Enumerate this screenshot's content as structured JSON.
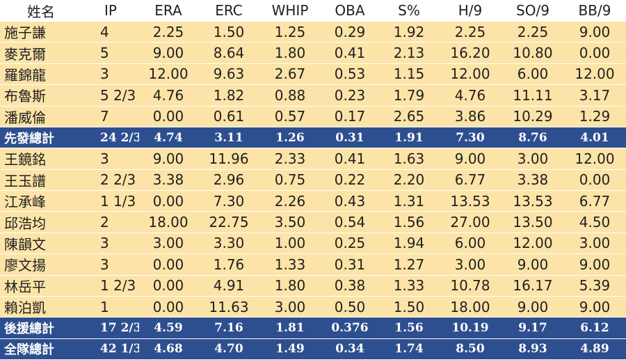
{
  "columns": [
    "姓名",
    "IP",
    "ERA",
    "ERC",
    "WHIP",
    "OBA",
    "S%",
    "H/9",
    "SO/9",
    "BB/9"
  ],
  "rows": [
    {
      "type": "player",
      "cells": [
        "施子謙",
        "4",
        "2.25",
        "1.50",
        "1.25",
        "0.29",
        "1.92",
        "2.25",
        "2.25",
        "9.00"
      ]
    },
    {
      "type": "player",
      "cells": [
        "麥克爾",
        "5",
        "9.00",
        "8.64",
        "1.80",
        "0.41",
        "2.13",
        "16.20",
        "10.80",
        "0.00"
      ]
    },
    {
      "type": "player",
      "cells": [
        "羅錦龍",
        "3",
        "12.00",
        "9.63",
        "2.67",
        "0.53",
        "1.15",
        "12.00",
        "6.00",
        "12.00"
      ]
    },
    {
      "type": "player",
      "cells": [
        "布魯斯",
        "5 2/3",
        "4.76",
        "1.82",
        "0.88",
        "0.23",
        "1.79",
        "4.76",
        "11.11",
        "3.17"
      ]
    },
    {
      "type": "player",
      "cells": [
        "潘威倫",
        "7",
        "0.00",
        "0.61",
        "0.57",
        "0.17",
        "2.65",
        "3.86",
        "10.29",
        "1.29"
      ]
    },
    {
      "type": "total",
      "cells": [
        "先發總計",
        "24 2/3",
        "4.74",
        "3.11",
        "1.26",
        "0.31",
        "1.91",
        "7.30",
        "8.76",
        "4.01"
      ]
    },
    {
      "type": "player",
      "cells": [
        "王鏡銘",
        "3",
        "9.00",
        "11.96",
        "2.33",
        "0.41",
        "1.63",
        "9.00",
        "3.00",
        "12.00"
      ]
    },
    {
      "type": "player",
      "cells": [
        "王玉譜",
        "2 2/3",
        "3.38",
        "2.96",
        "0.75",
        "0.22",
        "2.20",
        "6.77",
        "3.38",
        "0.00"
      ]
    },
    {
      "type": "player",
      "cells": [
        "江承峰",
        "1 1/3",
        "0.00",
        "7.30",
        "2.26",
        "0.43",
        "1.31",
        "13.53",
        "13.53",
        "6.77"
      ]
    },
    {
      "type": "player",
      "cells": [
        "邱浩均",
        "2",
        "18.00",
        "22.75",
        "3.50",
        "0.54",
        "1.56",
        "27.00",
        "13.50",
        "4.50"
      ]
    },
    {
      "type": "player",
      "cells": [
        "陳韻文",
        "3",
        "3.00",
        "3.30",
        "1.00",
        "0.25",
        "1.94",
        "6.00",
        "12.00",
        "3.00"
      ]
    },
    {
      "type": "player",
      "cells": [
        "廖文揚",
        "3",
        "0.00",
        "1.76",
        "1.33",
        "0.31",
        "1.27",
        "3.00",
        "9.00",
        "9.00"
      ]
    },
    {
      "type": "player",
      "cells": [
        "林岳平",
        "1 2/3",
        "0.00",
        "4.91",
        "1.80",
        "0.38",
        "1.33",
        "10.78",
        "16.17",
        "5.39"
      ]
    },
    {
      "type": "player",
      "cells": [
        "賴泊凱",
        "1",
        "0.00",
        "11.63",
        "3.00",
        "0.50",
        "1.50",
        "18.00",
        "9.00",
        "9.00"
      ]
    },
    {
      "type": "total",
      "cells": [
        "後援總計",
        "17 2/3",
        "4.59",
        "7.16",
        "1.81",
        "0.376",
        "1.56",
        "10.19",
        "9.17",
        "6.12"
      ]
    },
    {
      "type": "total",
      "cells": [
        "全隊總計",
        "42 1/3",
        "4.68",
        "4.70",
        "1.49",
        "0.34",
        "1.74",
        "8.50",
        "8.93",
        "4.89"
      ]
    }
  ],
  "colors": {
    "row_background": "#fce4a8",
    "total_background": "#2e4f8f",
    "total_text": "#ffffff",
    "text": "#1f1f1f"
  }
}
